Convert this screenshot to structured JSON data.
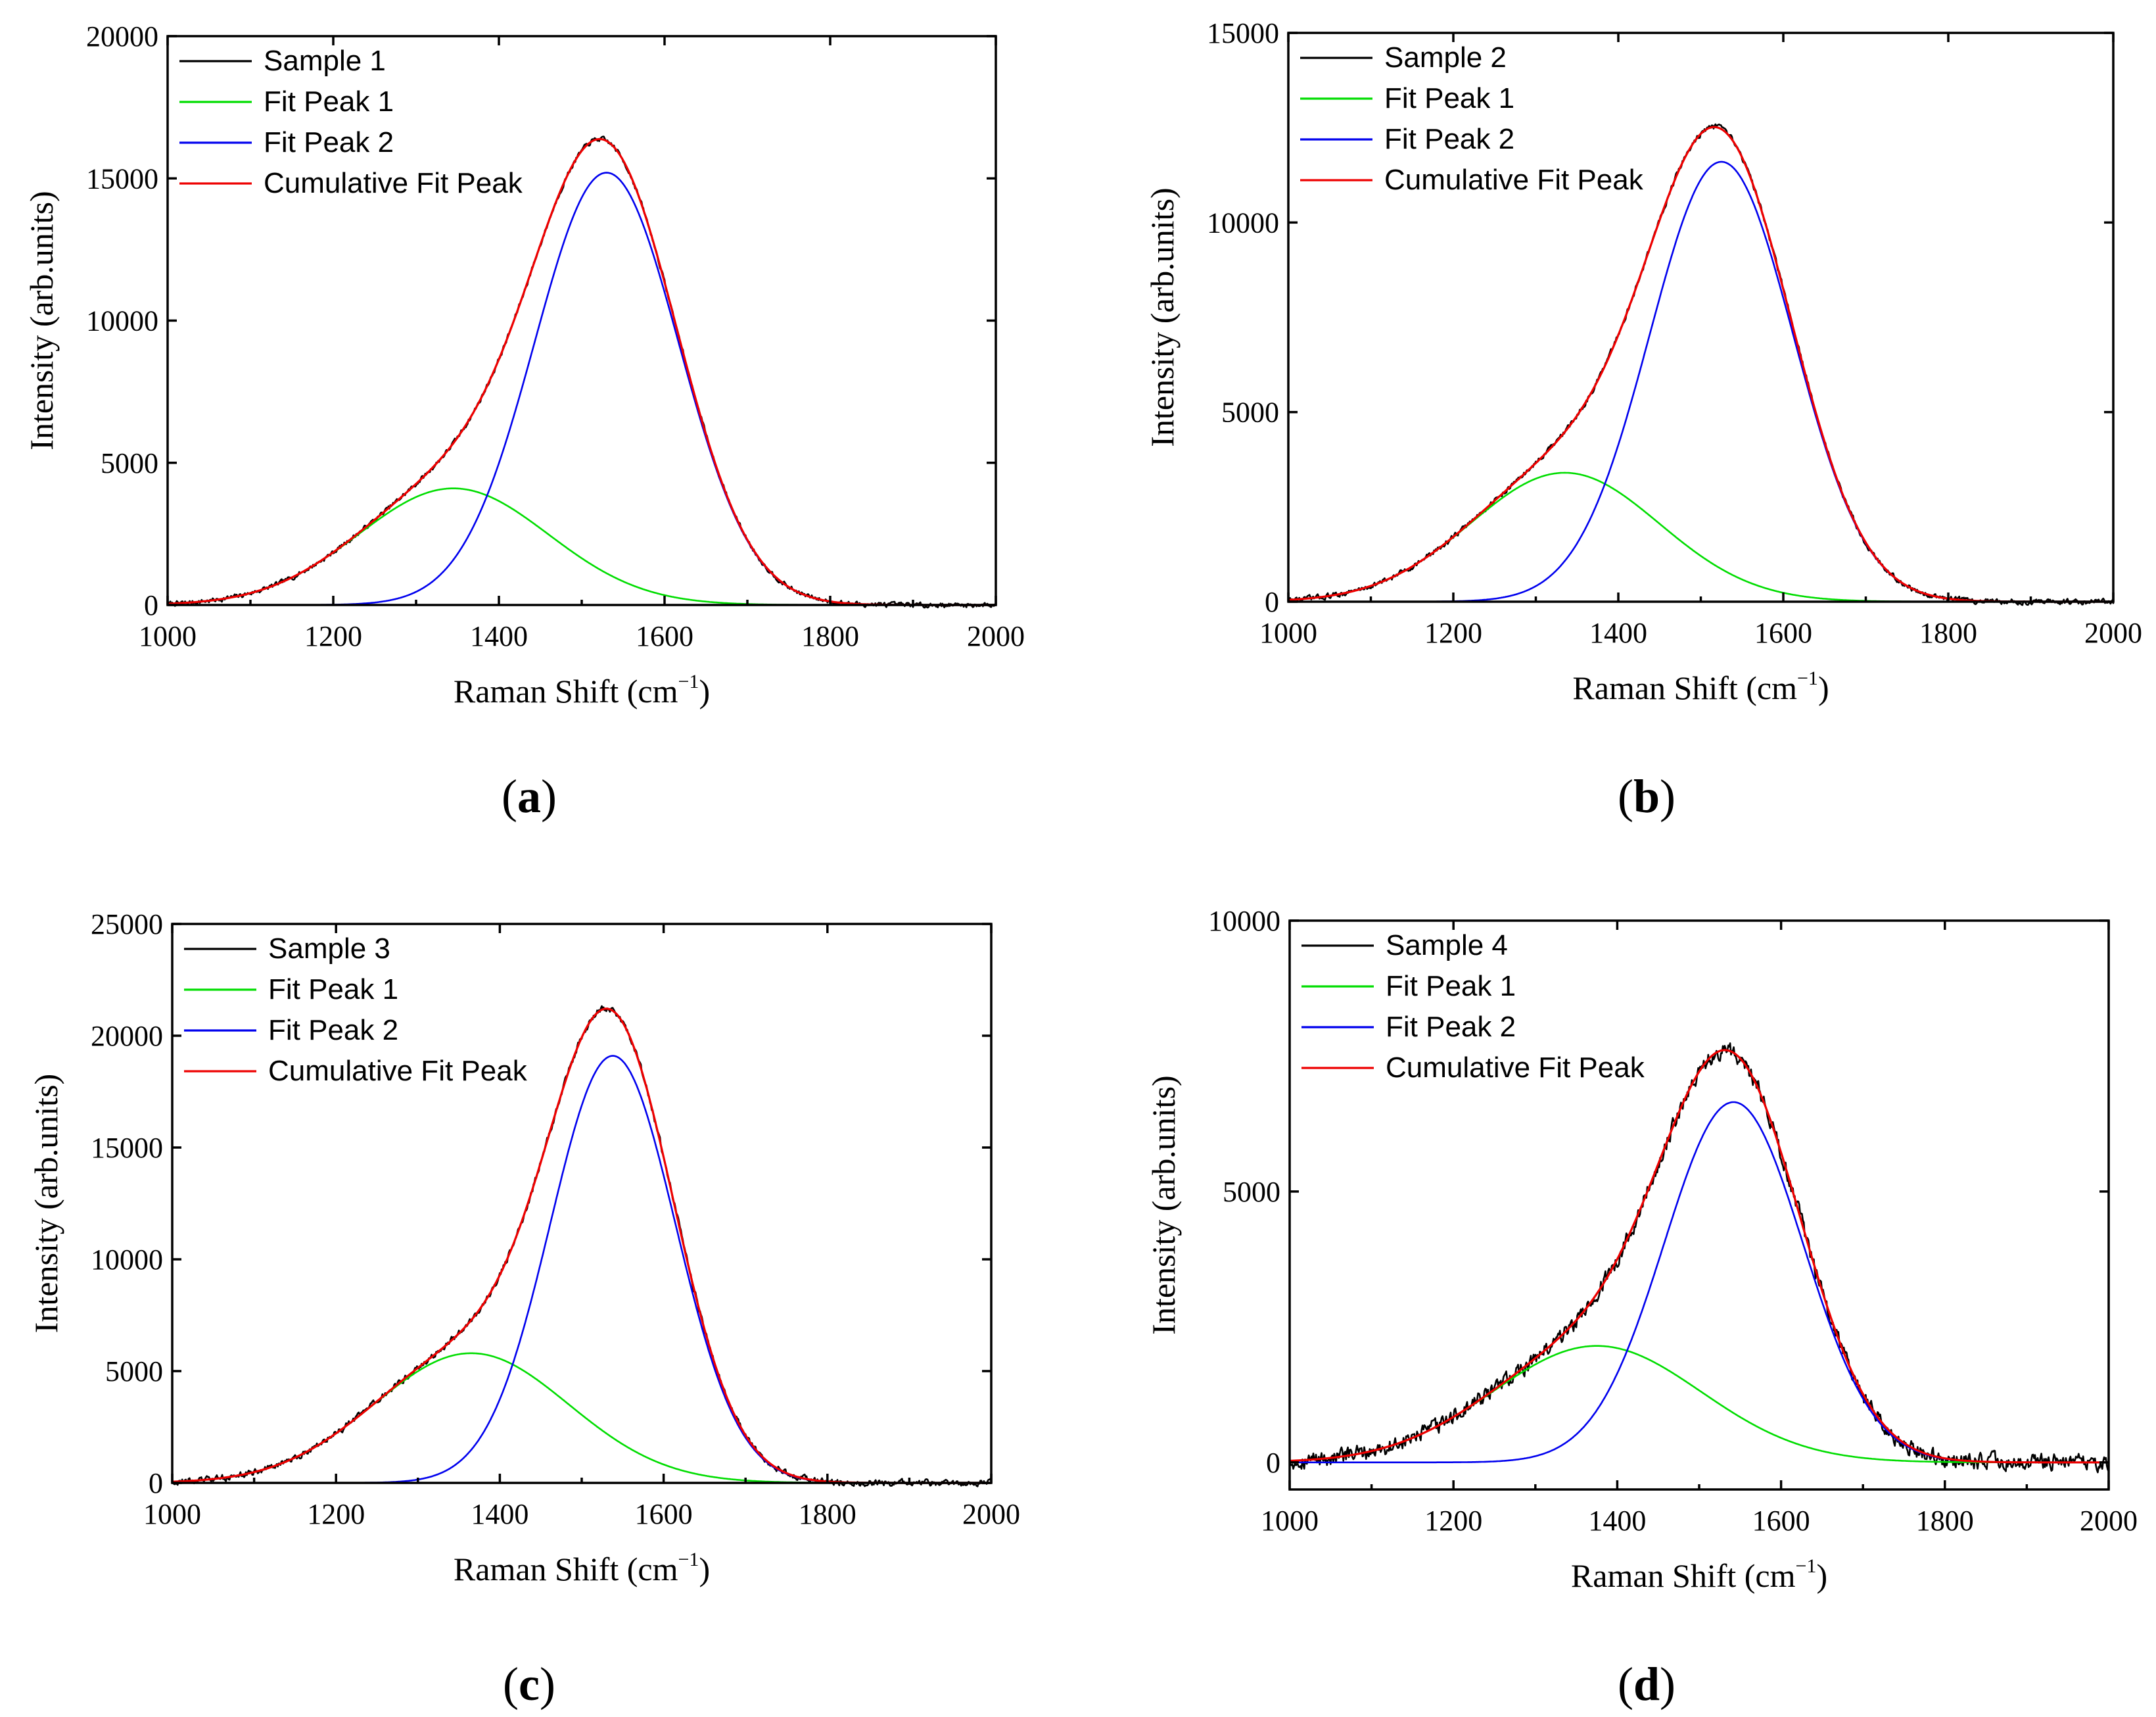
{
  "figure": {
    "xlabel_main": "Raman Shift  (cm",
    "xlabel_sup": "−1",
    "xlabel_close": ")",
    "ylabel": "Intensity (arb.units)"
  },
  "colors": {
    "sample": "#000000",
    "fit1": "#00dd00",
    "fit2": "#0000ee",
    "cumulative": "#ee0000"
  },
  "chart_data": [
    {
      "id": "a",
      "panel_label": "a",
      "type": "line",
      "xlim": [
        1000,
        2000
      ],
      "ylim": [
        0,
        20000
      ],
      "xticks": [
        1000,
        1200,
        1400,
        1600,
        1800,
        2000
      ],
      "yticks": [
        0,
        5000,
        10000,
        15000,
        20000
      ],
      "legend": {
        "sample": "Sample 1",
        "fit1": "Fit Peak 1",
        "fit2": "Fit Peak 2",
        "cumulative": "Cumulative Fit Peak"
      },
      "peaks": {
        "fit1": {
          "amplitude": 4100,
          "center": 1345,
          "fwhm": 270
        },
        "fit2": {
          "amplitude": 15200,
          "center": 1530,
          "fwhm": 205
        }
      },
      "sample_noise_amplitude": 130
    },
    {
      "id": "b",
      "panel_label": "b",
      "type": "line",
      "xlim": [
        1000,
        2000
      ],
      "ylim": [
        0,
        15000
      ],
      "xticks": [
        1000,
        1200,
        1400,
        1600,
        1800,
        2000
      ],
      "yticks": [
        0,
        5000,
        10000,
        15000
      ],
      "legend": {
        "sample": "Sample 2",
        "fit1": "Fit Peak 1",
        "fit2": "Fit Peak 2",
        "cumulative": "Cumulative Fit Peak"
      },
      "peaks": {
        "fit1": {
          "amplitude": 3400,
          "center": 1335,
          "fwhm": 270
        },
        "fit2": {
          "amplitude": 11600,
          "center": 1525,
          "fwhm": 205
        }
      },
      "sample_noise_amplitude": 110
    },
    {
      "id": "c",
      "panel_label": "c",
      "type": "line",
      "xlim": [
        1000,
        2000
      ],
      "ylim": [
        0,
        25000
      ],
      "xticks": [
        1000,
        1200,
        1400,
        1600,
        1800,
        2000
      ],
      "yticks": [
        0,
        5000,
        10000,
        15000,
        20000,
        25000
      ],
      "legend": {
        "sample": "Sample 3",
        "fit1": "Fit Peak 1",
        "fit2": "Fit Peak 2",
        "cumulative": "Cumulative Fit Peak"
      },
      "peaks": {
        "fit1": {
          "amplitude": 5800,
          "center": 1365,
          "fwhm": 280
        },
        "fit2": {
          "amplitude": 19100,
          "center": 1538,
          "fwhm": 180
        }
      },
      "sample_noise_amplitude": 220
    },
    {
      "id": "d",
      "panel_label": "d",
      "type": "line",
      "xlim": [
        1000,
        2000
      ],
      "ylim": [
        -500,
        10000
      ],
      "xticks": [
        1000,
        1200,
        1400,
        1600,
        1800,
        2000
      ],
      "yticks": [
        0,
        5000,
        10000
      ],
      "legend": {
        "sample": "Sample 4",
        "fit1": "Fit Peak 1",
        "fit2": "Fit Peak 2",
        "cumulative": "Cumulative Fit Peak"
      },
      "peaks": {
        "fit1": {
          "amplitude": 2150,
          "center": 1375,
          "fwhm": 300
        },
        "fit2": {
          "amplitude": 6650,
          "center": 1542,
          "fwhm": 200
        }
      },
      "sample_noise_amplitude": 230
    }
  ]
}
